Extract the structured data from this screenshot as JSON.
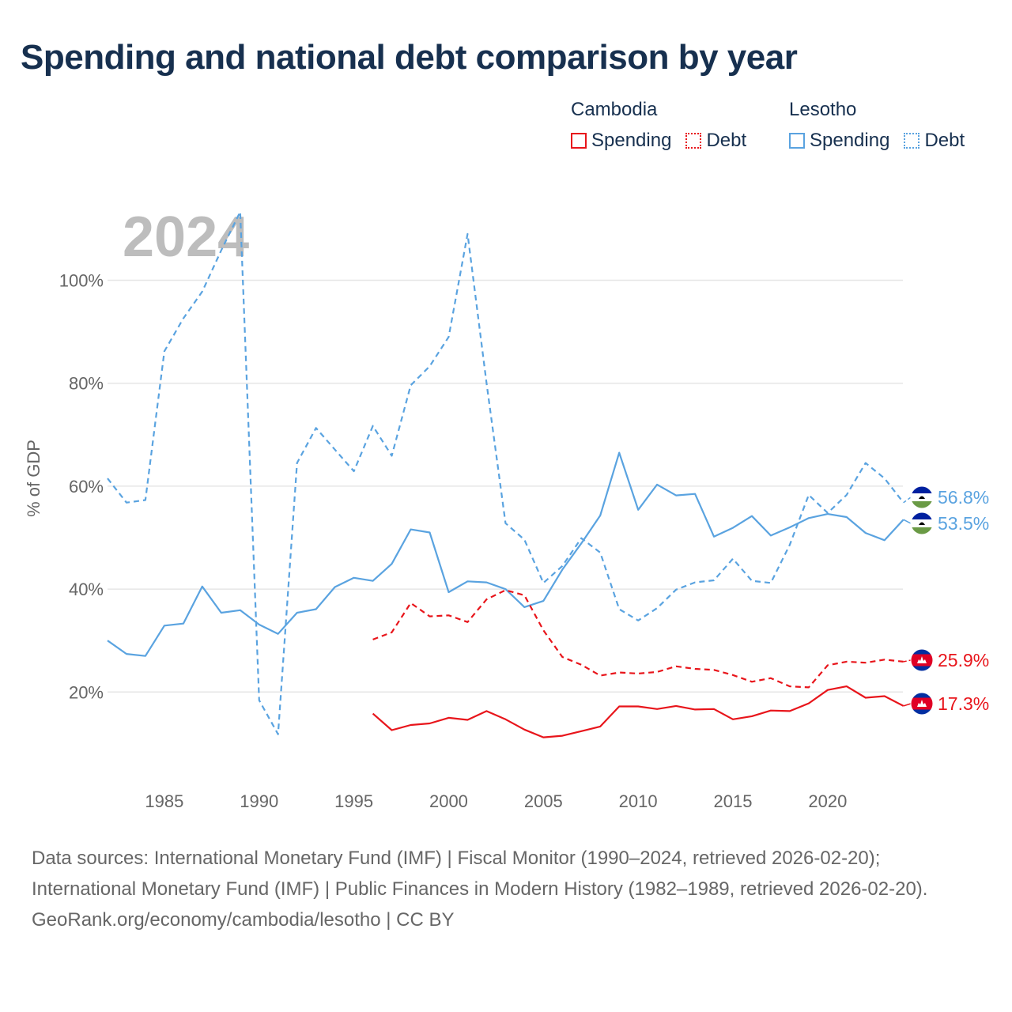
{
  "title": "Spending and national debt comparison by year",
  "legend": {
    "groups": [
      {
        "country": "Cambodia",
        "items": [
          {
            "label": "Spending",
            "style": "solid",
            "color": "#e8151b"
          },
          {
            "label": "Debt",
            "style": "dotted",
            "color": "#e8151b"
          }
        ]
      },
      {
        "country": "Lesotho",
        "items": [
          {
            "label": "Spending",
            "style": "solid",
            "color": "#5aa3e0"
          },
          {
            "label": "Debt",
            "style": "dotted",
            "color": "#5aa3e0"
          }
        ]
      }
    ]
  },
  "year_watermark": "2024",
  "colors": {
    "cambodia": "#e8151b",
    "lesotho": "#5aa3e0",
    "grid": "#e6e6e6",
    "title": "#17304f",
    "watermark": "#bdbdbd"
  },
  "chart_data": {
    "type": "line",
    "title": "Spending and national debt comparison by year",
    "xlabel": "",
    "ylabel": "% of GDP",
    "xlim": [
      1982,
      2024
    ],
    "ylim": [
      0,
      115
    ],
    "x_ticks": [
      1985,
      1990,
      1995,
      2000,
      2005,
      2010,
      2015,
      2020
    ],
    "y_ticks": [
      20,
      40,
      60,
      80,
      100
    ],
    "y_tick_labels": [
      "20%",
      "40%",
      "60%",
      "80%",
      "100%"
    ],
    "series": [
      {
        "name": "Lesotho Debt",
        "country": "Lesotho",
        "metric": "Debt",
        "dashed": true,
        "color": "#5aa3e0",
        "x": [
          1982,
          1983,
          1984,
          1985,
          1986,
          1987,
          1988,
          1989,
          1990,
          1991,
          1992,
          1993,
          1994,
          1995,
          1996,
          1997,
          1998,
          1999,
          2000,
          2001,
          2002,
          2003,
          2004,
          2005,
          2006,
          2007,
          2008,
          2009,
          2010,
          2011,
          2012,
          2013,
          2014,
          2015,
          2016,
          2017,
          2018,
          2019,
          2020,
          2021,
          2022,
          2023,
          2024
        ],
        "values": [
          61.5,
          56.8,
          57.3,
          86.2,
          92.6,
          97.8,
          105.8,
          113.3,
          18.4,
          11.8,
          64.5,
          71.3,
          67.1,
          62.9,
          71.7,
          65.9,
          79.6,
          83.3,
          89,
          109,
          80,
          52.8,
          49.6,
          41.2,
          44.5,
          49.9,
          47.1,
          36.1,
          33.9,
          36.3,
          39.9,
          41.3,
          41.7,
          45.9,
          41.6,
          41.2,
          48.6,
          58.3,
          54.8,
          58.3,
          64.5,
          61.5,
          56.8
        ],
        "end_label": "56.8%"
      },
      {
        "name": "Lesotho Spending",
        "country": "Lesotho",
        "metric": "Spending",
        "dashed": false,
        "color": "#5aa3e0",
        "x": [
          1982,
          1983,
          1984,
          1985,
          1986,
          1987,
          1988,
          1989,
          1990,
          1991,
          1992,
          1993,
          1994,
          1995,
          1996,
          1997,
          1998,
          1999,
          2000,
          2001,
          2002,
          2003,
          2004,
          2005,
          2006,
          2007,
          2008,
          2009,
          2010,
          2011,
          2012,
          2013,
          2014,
          2015,
          2016,
          2017,
          2018,
          2019,
          2020,
          2021,
          2022,
          2023,
          2024
        ],
        "values": [
          30,
          27.4,
          27,
          32.9,
          33.3,
          40.5,
          35.4,
          35.9,
          33.1,
          31.3,
          35.4,
          36.1,
          40.4,
          42.2,
          41.6,
          44.9,
          51.6,
          51,
          39.4,
          41.5,
          41.3,
          40,
          36.5,
          37.7,
          43.8,
          48.9,
          54.3,
          66.5,
          55.4,
          60.3,
          58.2,
          58.5,
          50.2,
          51.9,
          54.2,
          50.4,
          52,
          53.8,
          54.6,
          54,
          50.9,
          49.5,
          53.5
        ],
        "end_label": "53.5%"
      },
      {
        "name": "Cambodia Debt",
        "country": "Cambodia",
        "metric": "Debt",
        "dashed": true,
        "color": "#e8151b",
        "x": [
          1996,
          1997,
          1998,
          1999,
          2000,
          2001,
          2002,
          2003,
          2004,
          2005,
          2006,
          2007,
          2008,
          2009,
          2010,
          2011,
          2012,
          2013,
          2014,
          2015,
          2016,
          2017,
          2018,
          2019,
          2020,
          2021,
          2022,
          2023,
          2024
        ],
        "values": [
          30.2,
          31.6,
          37.3,
          34.7,
          34.9,
          33.6,
          38,
          39.8,
          38.8,
          32,
          26.8,
          25.3,
          23.2,
          23.8,
          23.6,
          23.9,
          25,
          24.5,
          24.3,
          23.3,
          22,
          22.7,
          21.1,
          20.9,
          25.2,
          25.9,
          25.7,
          26.3,
          25.9
        ],
        "end_label": "25.9%"
      },
      {
        "name": "Cambodia Spending",
        "country": "Cambodia",
        "metric": "Spending",
        "dashed": false,
        "color": "#e8151b",
        "x": [
          1996,
          1997,
          1998,
          1999,
          2000,
          2001,
          2002,
          2003,
          2004,
          2005,
          2006,
          2007,
          2008,
          2009,
          2010,
          2011,
          2012,
          2013,
          2014,
          2015,
          2016,
          2017,
          2018,
          2019,
          2020,
          2021,
          2022,
          2023,
          2024
        ],
        "values": [
          15.8,
          12.6,
          13.6,
          13.9,
          15,
          14.6,
          16.3,
          14.7,
          12.7,
          11.2,
          11.5,
          12.4,
          13.3,
          17.2,
          17.2,
          16.7,
          17.3,
          16.6,
          16.7,
          14.7,
          15.3,
          16.4,
          16.3,
          17.8,
          20.4,
          21.1,
          18.9,
          19.2,
          17.3
        ],
        "end_label": "17.3%"
      }
    ]
  },
  "footer": {
    "sources": "Data sources: International Monetary Fund (IMF) | Fiscal Monitor (1990–2024, retrieved 2026-02-20); International Monetary Fund (IMF) | Public Finances in Modern History (1982–1989, retrieved 2026-02-20).",
    "credit": "GeoRank.org/economy/cambodia/lesotho | CC BY"
  }
}
